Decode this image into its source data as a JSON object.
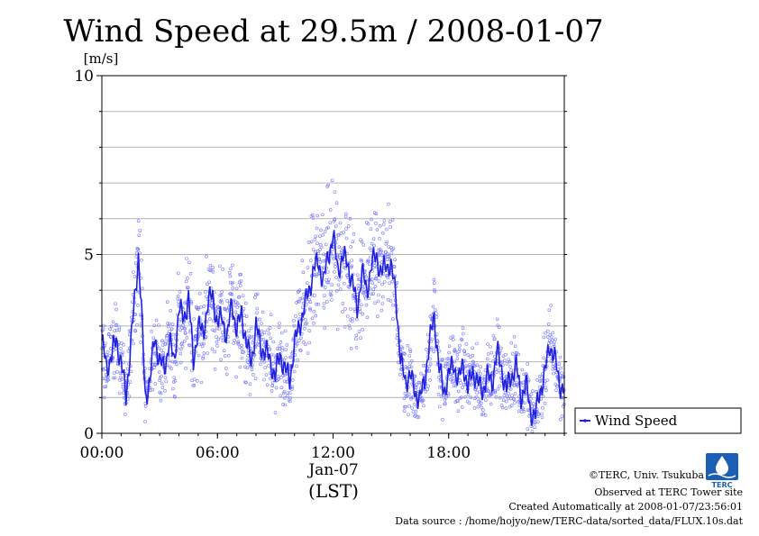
{
  "chart_data": {
    "type": "line",
    "title": "Wind Speed at 29.5m / 2008-01-07",
    "ylabel": "[m/s]",
    "ylim": [
      0,
      10
    ],
    "yticks": [
      "0",
      "5",
      "10"
    ],
    "xlim": [
      0,
      24
    ],
    "xticks": [
      {
        "value": 0,
        "label": "00:00"
      },
      {
        "value": 6,
        "label": "06:00"
      },
      {
        "value": 12,
        "label": "12:00"
      },
      {
        "value": 18,
        "label": "18:00"
      }
    ],
    "xdate_label": "Jan-07",
    "xlabel": "(LST)",
    "grid": true,
    "legend_position": "right",
    "series": [
      {
        "name": "Wind Speed",
        "color": "#2020e0",
        "scatter_color": "#7777ff",
        "x": [
          0,
          0.25,
          0.5,
          0.75,
          1.0,
          1.25,
          1.5,
          1.75,
          1.9,
          2.05,
          2.25,
          2.5,
          2.75,
          3.0,
          3.25,
          3.5,
          3.75,
          4.0,
          4.25,
          4.5,
          4.75,
          5.0,
          5.25,
          5.5,
          5.75,
          6.0,
          6.25,
          6.5,
          6.75,
          7.0,
          7.25,
          7.5,
          7.75,
          8.0,
          8.25,
          8.5,
          8.75,
          9.0,
          9.25,
          9.5,
          9.75,
          10.0,
          10.25,
          10.5,
          10.75,
          11.0,
          11.25,
          11.5,
          11.75,
          12.0,
          12.25,
          12.5,
          12.75,
          13.0,
          13.25,
          13.5,
          13.75,
          14.0,
          14.25,
          14.5,
          14.75,
          15.0,
          15.25,
          15.5,
          15.75,
          16.0,
          16.25,
          16.5,
          16.75,
          17.0,
          17.25,
          17.5,
          17.75,
          18.0,
          18.25,
          18.5,
          18.75,
          19.0,
          19.25,
          19.5,
          19.75,
          20.0,
          20.25,
          20.5,
          20.75,
          21.0,
          21.25,
          21.5,
          21.75,
          22.0,
          22.25,
          22.5,
          22.75,
          23.0,
          23.25,
          23.5,
          23.75,
          24.0
        ],
        "values": [
          2.6,
          1.8,
          2.2,
          2.6,
          2.0,
          1.0,
          2.5,
          4.0,
          5.0,
          3.5,
          1.0,
          1.5,
          2.7,
          2.0,
          1.8,
          2.6,
          2.0,
          3.5,
          3.2,
          3.8,
          2.0,
          3.0,
          2.8,
          3.6,
          3.9,
          3.0,
          3.3,
          2.6,
          3.7,
          2.8,
          3.4,
          2.5,
          2.0,
          3.0,
          2.4,
          2.3,
          2.0,
          1.6,
          2.2,
          1.8,
          1.5,
          2.5,
          3.0,
          3.5,
          4.0,
          4.6,
          4.8,
          4.2,
          5.0,
          5.5,
          4.6,
          4.9,
          4.8,
          4.2,
          3.5,
          4.5,
          4.0,
          4.7,
          5.0,
          4.4,
          4.8,
          4.6,
          4.0,
          2.0,
          1.5,
          1.6,
          1.2,
          0.9,
          1.5,
          2.5,
          3.3,
          1.8,
          1.2,
          1.6,
          2.0,
          1.4,
          2.0,
          1.2,
          1.8,
          1.4,
          1.2,
          1.6,
          1.4,
          2.3,
          1.8,
          1.2,
          1.6,
          1.9,
          1.0,
          1.4,
          0.6,
          0.5,
          1.2,
          1.7,
          2.5,
          2.1,
          1.4,
          1.2
        ]
      }
    ]
  },
  "legend": {
    "label": "Wind Speed"
  },
  "footer": {
    "logo_text": "TERC",
    "copyright": "©TERC, Univ. Tsukuba",
    "observed": "Observed at TERC Tower site",
    "created": "Created Automatically at 2008-01-07/23:56:01",
    "source": "Data source : /home/hojyo/new/TERC-data/sorted_data/FLUX.10s.dat"
  }
}
